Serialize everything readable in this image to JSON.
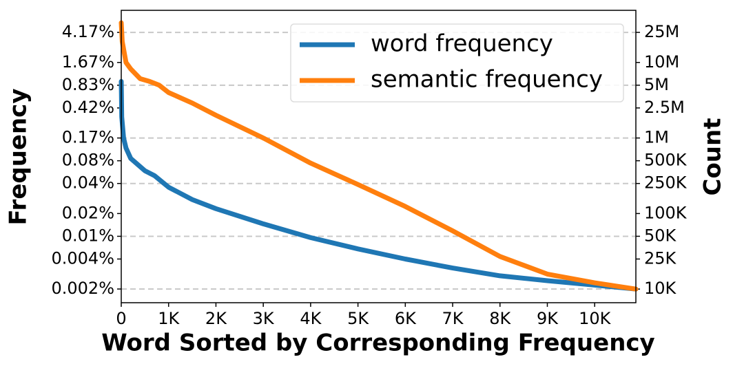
{
  "chart_data": {
    "type": "line",
    "x_label": "Word Sorted by Corresponding Frequency",
    "y_label": "Frequency",
    "y2_label": "Count",
    "log_y": true,
    "xlim": [
      0,
      10870
    ],
    "xticks": [
      0,
      {
        "value": 1000,
        "label": "1K"
      },
      {
        "value": 2000,
        "label": "2K"
      },
      {
        "value": 3000,
        "label": "3K"
      },
      {
        "value": 4000,
        "label": "4K"
      },
      {
        "value": 5000,
        "label": "5K"
      },
      {
        "value": 6000,
        "label": "6K"
      },
      {
        "value": 7000,
        "label": "7K"
      },
      {
        "value": 8000,
        "label": "8K"
      },
      {
        "value": 9000,
        "label": "9K"
      },
      {
        "value": 10000,
        "label": "10K"
      }
    ],
    "ylim": [
      0.0011,
      8.17
    ],
    "yticks": [
      {
        "value": 0.00167,
        "label": "0.002%"
      },
      {
        "value": 0.004167,
        "label": "0.004%"
      },
      {
        "value": 0.00833,
        "label": "0.01%"
      },
      {
        "value": 0.01667,
        "label": "0.02%"
      },
      {
        "value": 0.04167,
        "label": "0.04%"
      },
      {
        "value": 0.0833,
        "label": "0.08%"
      },
      {
        "value": 0.1667,
        "label": "0.17%"
      },
      {
        "value": 0.4167,
        "label": "0.42%"
      },
      {
        "value": 0.833,
        "label": "0.83%"
      },
      {
        "value": 1.667,
        "label": "1.67%"
      },
      {
        "value": 4.167,
        "label": "4.17%"
      }
    ],
    "grid_yticks": [
      {
        "value": 0.00167,
        "label": "0.002%"
      },
      {
        "value": 0.00833,
        "label": "0.01%"
      },
      {
        "value": 0.04167,
        "label": "0.04%"
      },
      {
        "value": 0.1667,
        "label": "0.17%"
      },
      {
        "value": 0.833,
        "label": "0.83%"
      },
      {
        "value": 4.167,
        "label": "4.17%"
      }
    ],
    "y2lim": [
      6600,
      49000000
    ],
    "y2ticks": [
      {
        "value": 10000,
        "label": "10K"
      },
      {
        "value": 25000,
        "label": "25K"
      },
      {
        "value": 50000,
        "label": "50K"
      },
      {
        "value": 100000,
        "label": "100K"
      },
      {
        "value": 250000,
        "label": "250K"
      },
      {
        "value": 500000,
        "label": "500K"
      },
      {
        "value": 1000000,
        "label": "1M"
      },
      {
        "value": 2500000,
        "label": "2.5M"
      },
      {
        "value": 5000000,
        "label": "5M"
      },
      {
        "value": 10000000,
        "label": "10M"
      },
      {
        "value": 25000000,
        "label": "25M"
      }
    ],
    "grid": true,
    "legend_position": "upper right",
    "series": [
      {
        "name": "word frequency",
        "color": "#1f77b4",
        "axis": "y2",
        "x": [
          0,
          10,
          50,
          100,
          200,
          500,
          700,
          1000,
          1500,
          2000,
          3000,
          4000,
          5000,
          6000,
          7000,
          8000,
          9000,
          10000,
          10870
        ],
        "values": [
          5600000,
          1900000,
          1000000,
          736000,
          537000,
          368000,
          318000,
          223000,
          153000,
          116000,
          73000,
          48000,
          34000,
          25000,
          19000,
          15000,
          12900,
          11300,
          10000
        ]
      },
      {
        "name": "semantic frequency",
        "color": "#ff7f0e",
        "axis": "y2",
        "x": [
          0,
          20,
          100,
          200,
          400,
          600,
          800,
          1000,
          1500,
          2000,
          3000,
          4000,
          5000,
          6000,
          7000,
          8000,
          9000,
          10000,
          10870
        ],
        "values": [
          33500000,
          19000000,
          10000000,
          8200000,
          6100000,
          5600000,
          5000000,
          4000000,
          2900000,
          2000000,
          1000000,
          465000,
          242000,
          124000,
          59000,
          27000,
          15800,
          12100,
          10000
        ]
      }
    ]
  }
}
